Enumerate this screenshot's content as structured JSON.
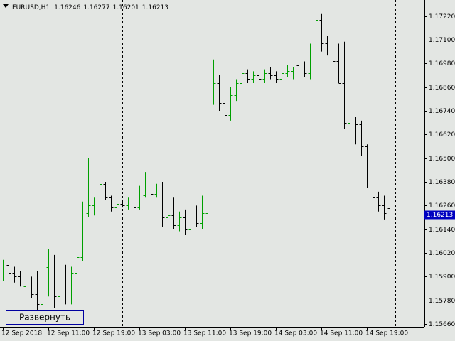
{
  "chart_data": {
    "type": "ohlc",
    "title": "EURUSD,H1",
    "categories": [
      "12 Sep 2018",
      null,
      null,
      null,
      null,
      null,
      null,
      null,
      "12 Sep 11:00",
      null,
      null,
      null,
      null,
      null,
      null,
      null,
      "12 Sep 19:00",
      null,
      null,
      null,
      null,
      null,
      null,
      null,
      "13 Sep 03:00",
      null,
      null,
      null,
      null,
      null,
      null,
      null,
      "13 Sep 11:00",
      null,
      null,
      null,
      null,
      null,
      null,
      null,
      "13 Sep 19:00",
      null,
      null,
      null,
      null,
      null,
      null,
      null,
      "14 Sep 03:00",
      null,
      null,
      null,
      null,
      null,
      null,
      null,
      "14 Sep 11:00",
      null,
      null,
      null,
      null,
      null,
      null,
      null,
      "14 Sep 19:00",
      null,
      null,
      null,
      null
    ],
    "open": [
      1.1594,
      1.1596,
      1.1592,
      1.159,
      1.1585,
      1.1587,
      1.1581,
      1.1576,
      1.1595,
      1.1599,
      1.158,
      1.1593,
      1.1578,
      1.1592,
      1.16,
      1.1622,
      1.1626,
      1.1628,
      1.1637,
      1.163,
      1.1625,
      1.1627,
      1.1626,
      1.1629,
      1.1625,
      1.1631,
      1.1635,
      1.1632,
      1.1635,
      1.162,
      1.1621,
      1.1616,
      1.162,
      1.1614,
      1.1623,
      1.1617,
      1.1622,
      1.168,
      1.1688,
      1.1678,
      1.1672,
      1.1682,
      1.1688,
      1.1693,
      1.169,
      1.1692,
      1.169,
      1.1693,
      1.1692,
      1.169,
      1.1693,
      1.1694,
      1.1697,
      1.1695,
      1.1693,
      1.17,
      1.172,
      1.1708,
      1.1705,
      1.1699,
      1.1688,
      1.1668,
      1.1669,
      1.1667,
      1.1656,
      1.1635,
      1.163,
      1.1626,
      1.16246
    ],
    "high": [
      1.15985,
      1.15975,
      1.1595,
      1.1593,
      1.1589,
      1.159,
      1.1593,
      1.1603,
      1.1604,
      1.1601,
      1.1596,
      1.1596,
      1.1595,
      1.1602,
      1.1628,
      1.165,
      1.163,
      1.1639,
      1.1638,
      1.1631,
      1.1629,
      1.1629,
      1.163,
      1.163,
      1.1636,
      1.1643,
      1.1638,
      1.1637,
      1.1638,
      1.1628,
      1.163,
      1.1623,
      1.1624,
      1.162,
      1.1626,
      1.1631,
      1.1688,
      1.17,
      1.1692,
      1.1685,
      1.1686,
      1.169,
      1.1695,
      1.1695,
      1.1694,
      1.1694,
      1.1695,
      1.1696,
      1.1694,
      1.1695,
      1.1697,
      1.1696,
      1.1698,
      1.1699,
      1.1708,
      1.1722,
      1.1723,
      1.1712,
      1.1706,
      1.1708,
      1.1709,
      1.1672,
      1.1671,
      1.1669,
      1.1657,
      1.1636,
      1.1633,
      1.1631,
      1.16277
    ],
    "low": [
      1.1588,
      1.1589,
      1.1587,
      1.1585,
      1.1583,
      1.1579,
      1.157,
      1.1574,
      1.158,
      1.1574,
      1.1578,
      1.1576,
      1.1576,
      1.159,
      1.1598,
      1.162,
      1.1621,
      1.1626,
      1.1629,
      1.1623,
      1.1622,
      1.1625,
      1.1624,
      1.1623,
      1.1624,
      1.163,
      1.163,
      1.163,
      1.1615,
      1.1615,
      1.1614,
      1.1613,
      1.1611,
      1.1607,
      1.1615,
      1.1614,
      1.1611,
      1.1677,
      1.1674,
      1.167,
      1.1669,
      1.1679,
      1.1684,
      1.1688,
      1.1688,
      1.1688,
      1.1688,
      1.169,
      1.1688,
      1.1688,
      1.1691,
      1.169,
      1.1693,
      1.1691,
      1.169,
      1.1698,
      1.1704,
      1.1702,
      1.1695,
      1.1688,
      1.1665,
      1.166,
      1.1657,
      1.1651,
      1.1635,
      1.1623,
      1.1623,
      1.1619,
      1.16201
    ],
    "close": [
      1.15965,
      1.1592,
      1.159,
      1.1587,
      1.1587,
      1.1581,
      1.1576,
      1.1598,
      1.1599,
      1.158,
      1.1593,
      1.1578,
      1.1592,
      1.16,
      1.1624,
      1.1626,
      1.1628,
      1.1637,
      1.163,
      1.1625,
      1.1627,
      1.1626,
      1.1629,
      1.1625,
      1.1634,
      1.1635,
      1.1632,
      1.1635,
      1.162,
      1.1621,
      1.1616,
      1.162,
      1.1614,
      1.1618,
      1.1617,
      1.1622,
      1.168,
      1.1688,
      1.1678,
      1.1672,
      1.1682,
      1.1688,
      1.1693,
      1.169,
      1.1692,
      1.169,
      1.1693,
      1.1692,
      1.169,
      1.1693,
      1.1694,
      1.1695,
      1.1695,
      1.1693,
      1.1705,
      1.172,
      1.1708,
      1.1705,
      1.1699,
      1.1688,
      1.1668,
      1.1669,
      1.1667,
      1.1656,
      1.1635,
      1.163,
      1.1626,
      1.1622,
      1.16213
    ],
    "up_color": "#00a000",
    "down_color": "#000000",
    "price_line_color": "#0000c0",
    "ylim": [
      1.15646,
      1.17294
    ],
    "yticks": [
      {
        "value": 1.1566,
        "label": "1.15660"
      },
      {
        "value": 1.1578,
        "label": "1.15780"
      },
      {
        "value": 1.159,
        "label": "1.15900"
      },
      {
        "value": 1.1602,
        "label": "1.16020"
      },
      {
        "value": 1.1614,
        "label": "1.16140"
      },
      {
        "value": 1.1626,
        "label": "1.16260"
      },
      {
        "value": 1.1638,
        "label": "1.16380"
      },
      {
        "value": 1.165,
        "label": "1.16500"
      },
      {
        "value": 1.1662,
        "label": "1.16620"
      },
      {
        "value": 1.1674,
        "label": "1.16740"
      },
      {
        "value": 1.1686,
        "label": "1.16860"
      },
      {
        "value": 1.1698,
        "label": "1.16980"
      },
      {
        "value": 1.171,
        "label": "1.17100"
      },
      {
        "value": 1.1722,
        "label": "1.17220"
      }
    ]
  },
  "button": {
    "label": "Развернуть"
  }
}
